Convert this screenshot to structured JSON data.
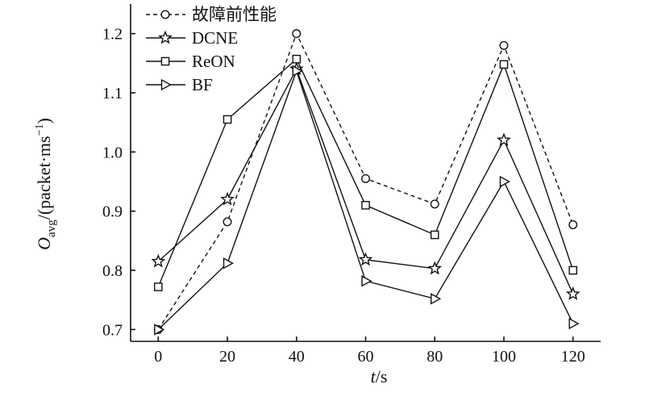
{
  "chart_data": {
    "type": "line",
    "x": [
      0,
      20,
      40,
      60,
      80,
      100,
      120
    ],
    "xticks": [
      "0",
      "20",
      "40",
      "60",
      "80",
      "100",
      "120"
    ],
    "yticks": [
      "0.7",
      "0.8",
      "0.9",
      "1.0",
      "1.1",
      "1.2"
    ],
    "xlim": [
      -8,
      128
    ],
    "ylim": [
      0.68,
      1.25
    ],
    "xlabel": {
      "var": "t",
      "unit": "/s"
    },
    "ylabel": {
      "var": "O",
      "sub": "avg",
      "unit": "/(packet·ms",
      "sup": "−1",
      "close": ")"
    },
    "grid": false,
    "legend": "top-left",
    "series": [
      {
        "name": "故障前性能",
        "marker": "circle",
        "dash": true,
        "values": [
          0.7,
          0.882,
          1.2,
          0.955,
          0.912,
          1.18,
          0.877
        ]
      },
      {
        "name": "DCNE",
        "marker": "star",
        "dash": false,
        "values": [
          0.815,
          0.92,
          1.14,
          0.818,
          0.803,
          1.02,
          0.76
        ]
      },
      {
        "name": "ReON",
        "marker": "square",
        "dash": false,
        "values": [
          0.772,
          1.055,
          1.157,
          0.91,
          0.86,
          1.148,
          0.8
        ]
      },
      {
        "name": "BF",
        "marker": "triangle-right",
        "dash": false,
        "values": [
          0.7,
          0.812,
          1.137,
          0.782,
          0.752,
          0.95,
          0.71
        ]
      }
    ]
  }
}
